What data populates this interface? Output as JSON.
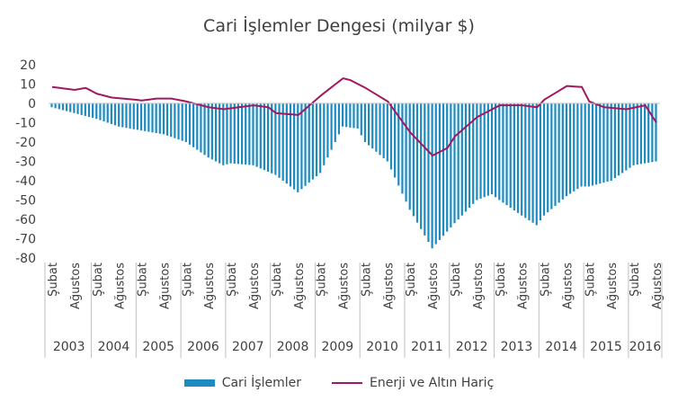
{
  "chart_data": {
    "type": "bar+line",
    "title": "Cari İşlemler Dengesi (milyar $)",
    "yticks": [
      20,
      10,
      0,
      -10,
      -20,
      -30,
      -40,
      -50,
      -60,
      -70,
      -80
    ],
    "ylim": [
      -80,
      20
    ],
    "years": [
      "2003",
      "2004",
      "2005",
      "2006",
      "2007",
      "2008",
      "2009",
      "2010",
      "2011",
      "2012",
      "2013",
      "2014",
      "2015",
      "2016"
    ],
    "month_tick_labels": [
      "Şubat",
      "Ağustos"
    ],
    "last_tick_label": "Ağustos",
    "period": "2003-02 to 2016-08 monthly (12-month rolling)",
    "bar_anchors": [
      [
        "2003-02",
        -2
      ],
      [
        "2003-08",
        -5
      ],
      [
        "2004-02",
        -8
      ],
      [
        "2004-08",
        -12
      ],
      [
        "2005-02",
        -14
      ],
      [
        "2005-08",
        -16
      ],
      [
        "2006-02",
        -20
      ],
      [
        "2006-08",
        -28
      ],
      [
        "2006-12",
        -32
      ],
      [
        "2007-02",
        -31
      ],
      [
        "2007-08",
        -32
      ],
      [
        "2008-02",
        -37
      ],
      [
        "2008-08",
        -46
      ],
      [
        "2009-02",
        -36
      ],
      [
        "2009-08",
        -12
      ],
      [
        "2009-12",
        -13
      ],
      [
        "2010-02",
        -20
      ],
      [
        "2010-08",
        -30
      ],
      [
        "2011-02",
        -55
      ],
      [
        "2011-08",
        -75
      ],
      [
        "2012-02",
        -62
      ],
      [
        "2012-08",
        -50
      ],
      [
        "2012-12",
        -47
      ],
      [
        "2013-02",
        -50
      ],
      [
        "2013-08",
        -58
      ],
      [
        "2013-12",
        -63
      ],
      [
        "2014-02",
        -58
      ],
      [
        "2014-08",
        -48
      ],
      [
        "2014-12",
        -43
      ],
      [
        "2015-02",
        -43
      ],
      [
        "2015-08",
        -40
      ],
      [
        "2016-02",
        -32
      ],
      [
        "2016-08",
        -30
      ]
    ],
    "line_anchors": [
      [
        "2003-02",
        8.5
      ],
      [
        "2003-08",
        7
      ],
      [
        "2003-11",
        8
      ],
      [
        "2004-02",
        5
      ],
      [
        "2004-06",
        3
      ],
      [
        "2004-12",
        2
      ],
      [
        "2005-02",
        1.5
      ],
      [
        "2005-06",
        2.5
      ],
      [
        "2005-10",
        2.5
      ],
      [
        "2006-02",
        1
      ],
      [
        "2006-08",
        -2
      ],
      [
        "2006-12",
        -3
      ],
      [
        "2007-02",
        -2.5
      ],
      [
        "2007-08",
        -1
      ],
      [
        "2007-12",
        -2
      ],
      [
        "2008-02",
        -5
      ],
      [
        "2008-08",
        -6
      ],
      [
        "2009-02",
        4
      ],
      [
        "2009-08",
        13
      ],
      [
        "2009-10",
        12
      ],
      [
        "2010-02",
        8
      ],
      [
        "2010-08",
        1
      ],
      [
        "2011-02",
        -15
      ],
      [
        "2011-08",
        -27
      ],
      [
        "2011-12",
        -23
      ],
      [
        "2012-02",
        -17
      ],
      [
        "2012-08",
        -7
      ],
      [
        "2012-12",
        -3
      ],
      [
        "2013-02",
        -1
      ],
      [
        "2013-08",
        -1
      ],
      [
        "2013-12",
        -2
      ],
      [
        "2014-02",
        2
      ],
      [
        "2014-08",
        9
      ],
      [
        "2014-12",
        8.5
      ],
      [
        "2015-02",
        1
      ],
      [
        "2015-06",
        -2
      ],
      [
        "2015-12",
        -3
      ],
      [
        "2016-05",
        -1
      ],
      [
        "2016-08",
        -10
      ]
    ]
  },
  "legend": {
    "bar_label": "Cari İşlemler",
    "line_label": "Enerji ve Altın Hariç"
  },
  "colors": {
    "bar": "#1b8bc0",
    "line": "#a0195f",
    "axis": "#bfbfbf"
  }
}
